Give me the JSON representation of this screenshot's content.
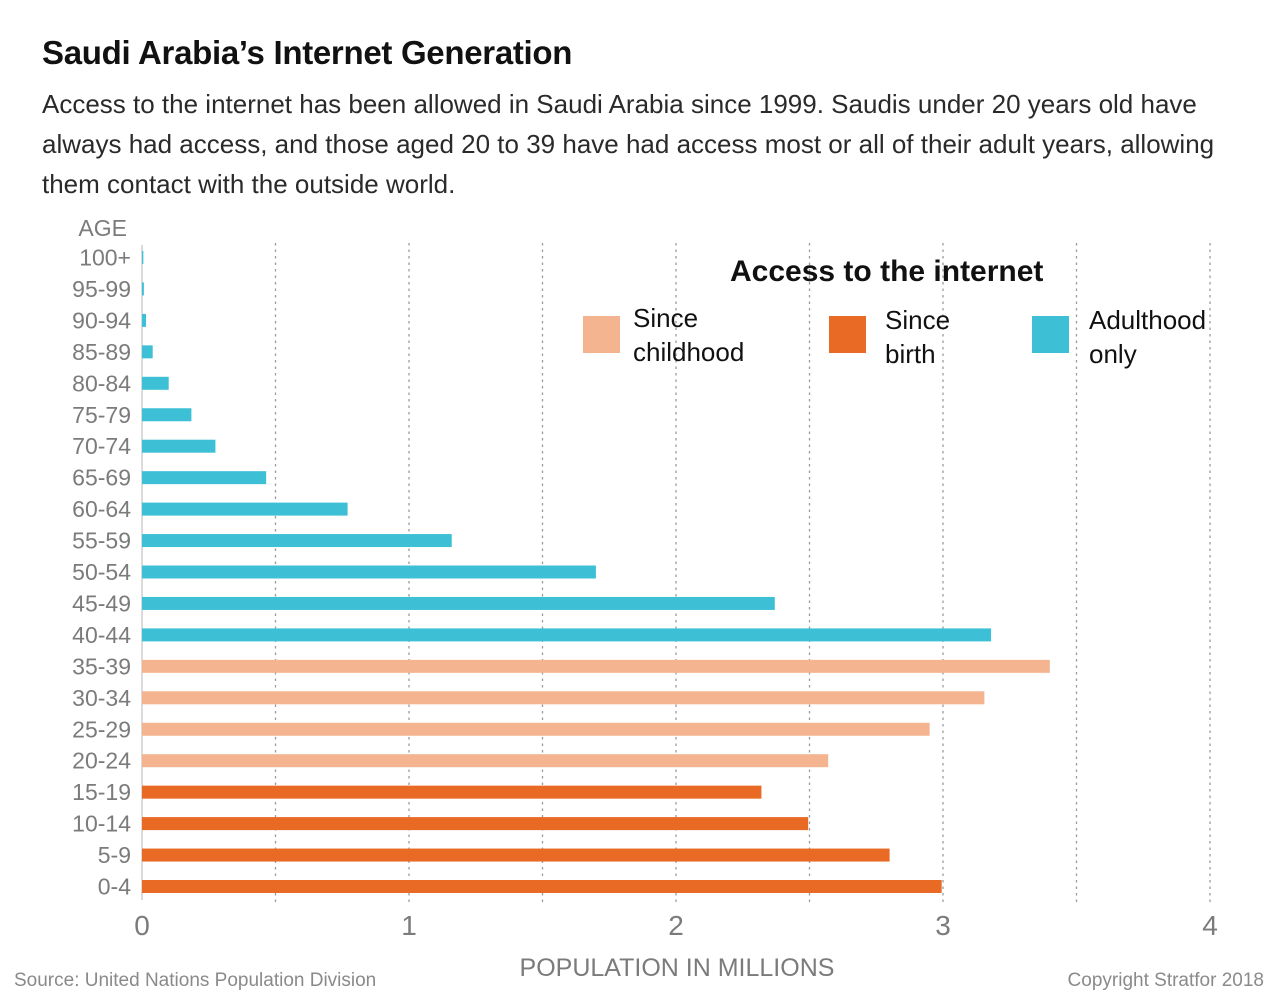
{
  "chart_data": {
    "type": "bar",
    "orientation": "horizontal",
    "title": "Saudi Arabia’s Internet Generation",
    "subtitle": "Access to the internet has been allowed in Saudi Arabia since 1999. Saudis under 20 years old have always had access, and those aged 20 to 39 have had access most or all of their adult years, allowing them contact with the outside world.",
    "ylabel": "AGE",
    "xlabel": "POPULATION IN  MILLIONS",
    "xlim": [
      0,
      4
    ],
    "xticks": [
      "0",
      "1",
      "2",
      "3",
      "4"
    ],
    "grid": "vertical dashed at every 0.5",
    "legend": {
      "title": "Access to the internet",
      "placement": "top-right",
      "items": [
        {
          "key": "childhood",
          "line1": "Since",
          "line2": "childhood",
          "color": "#F4B48F"
        },
        {
          "key": "birth",
          "line1": "Since",
          "line2": "birth",
          "color": "#E86A24"
        },
        {
          "key": "adulthood",
          "line1": "Adulthood",
          "line2": "only",
          "color": "#3DC0D6"
        }
      ]
    },
    "categories": [
      "100+",
      "95-99",
      "90-94",
      "85-89",
      "80-84",
      "75-79",
      "70-74",
      "65-69",
      "60-64",
      "55-59",
      "50-54",
      "45-49",
      "40-44",
      "35-39",
      "30-34",
      "25-29",
      "20-24",
      "15-19",
      "10-14",
      "5-9",
      "0-4"
    ],
    "values": [
      0.005,
      0.007,
      0.015,
      0.04,
      0.1,
      0.185,
      0.275,
      0.465,
      0.77,
      1.16,
      1.7,
      2.37,
      3.18,
      3.4,
      3.155,
      2.95,
      2.57,
      2.32,
      2.495,
      2.8,
      2.995
    ],
    "groups": [
      "adulthood",
      "adulthood",
      "adulthood",
      "adulthood",
      "adulthood",
      "adulthood",
      "adulthood",
      "adulthood",
      "adulthood",
      "adulthood",
      "adulthood",
      "adulthood",
      "adulthood",
      "childhood",
      "childhood",
      "childhood",
      "childhood",
      "birth",
      "birth",
      "birth",
      "birth"
    ]
  },
  "footer": {
    "source": "Source: United Nations Population Division",
    "copyright": "Copyright Stratfor 2018"
  }
}
